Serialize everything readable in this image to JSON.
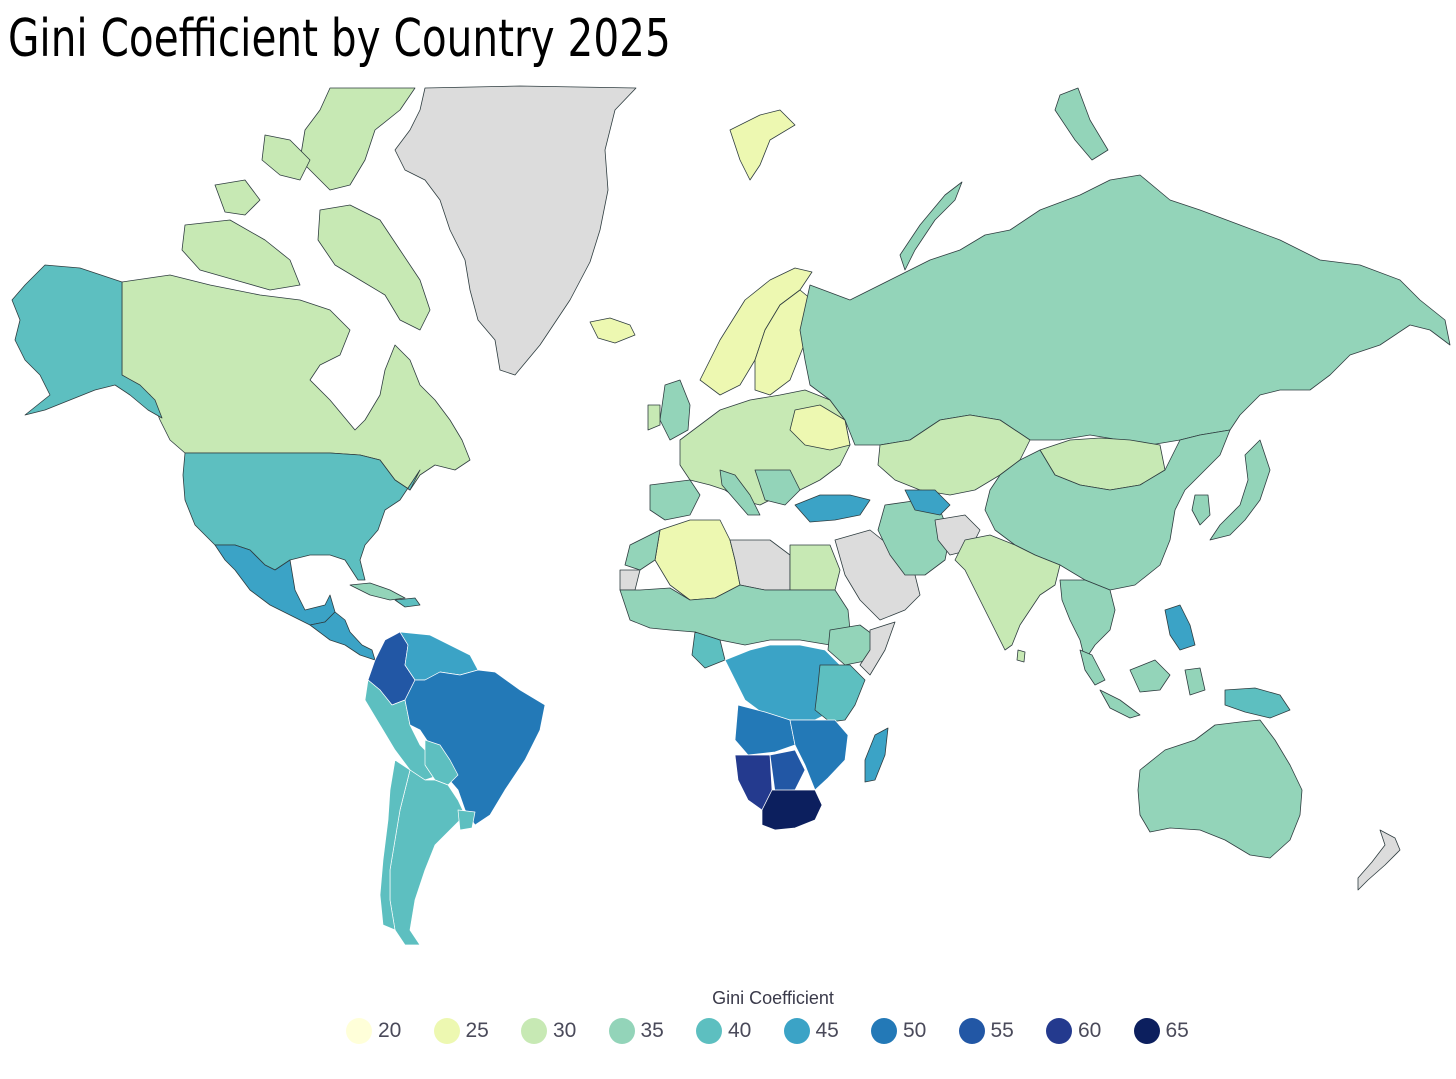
{
  "title": "Gini Coefficient by Country 2025",
  "legend": {
    "title": "Gini Coefficient",
    "items": [
      {
        "label": "20",
        "color": "#ffffd9"
      },
      {
        "label": "25",
        "color": "#edf8b1"
      },
      {
        "label": "30",
        "color": "#c7e9b4"
      },
      {
        "label": "35",
        "color": "#93d4b9"
      },
      {
        "label": "40",
        "color": "#5dbfc0"
      },
      {
        "label": "45",
        "color": "#3ba3c6"
      },
      {
        "label": "50",
        "color": "#2379b7"
      },
      {
        "label": "55",
        "color": "#2257a5"
      },
      {
        "label": "60",
        "color": "#243a8e"
      },
      {
        "label": "65",
        "color": "#0c1f5e"
      }
    ]
  },
  "no_data_color": "#dcdcdc"
}
